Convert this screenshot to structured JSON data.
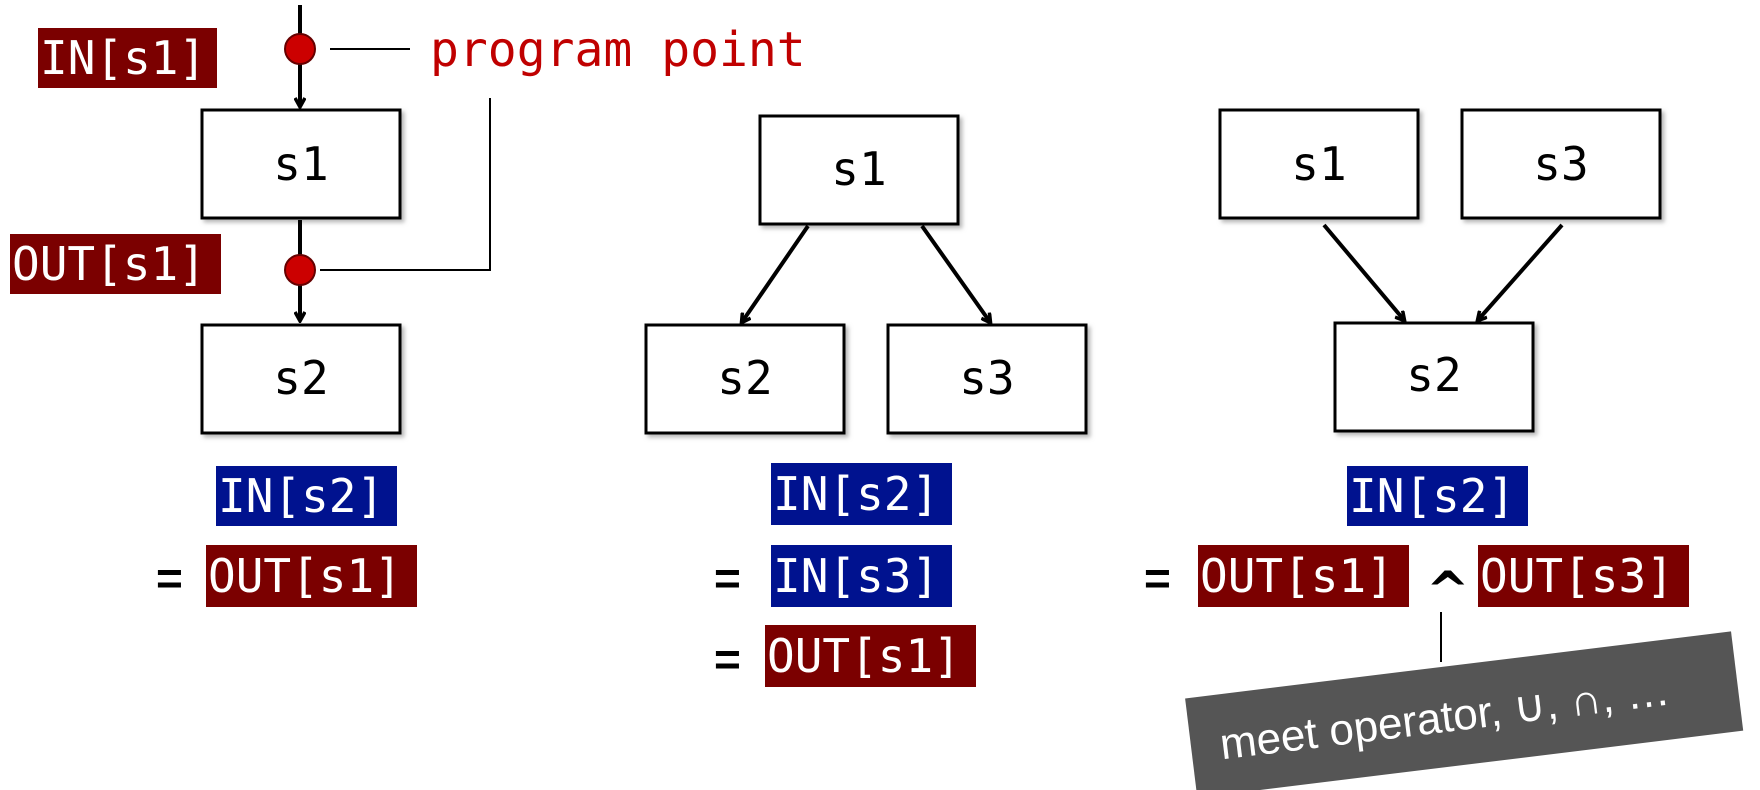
{
  "program_point_label": "program point",
  "diagrams": [
    {
      "nodes": [
        "s1",
        "s2"
      ],
      "in_s1": "IN[s1]",
      "out_s1": "OUT[s1]",
      "eq_lhs": "IN[s2]",
      "eq_sign": "=",
      "eq_rhs": "OUT[s1]"
    },
    {
      "nodes": [
        "s1",
        "s2",
        "s3"
      ],
      "eq_lhs": "IN[s2]",
      "eq_sign1": "=",
      "eq_rhs1": "IN[s3]",
      "eq_sign2": "=",
      "eq_rhs2": "OUT[s1]"
    },
    {
      "nodes": [
        "s1",
        "s3",
        "s2"
      ],
      "eq_lhs": "IN[s2]",
      "eq_sign": "=",
      "eq_rhs_a": "OUT[s1]",
      "meet_symbol": "^",
      "eq_rhs_b": "OUT[s3]",
      "meet_note": "meet operator, ∪, ∩, …"
    }
  ],
  "colors": {
    "in_label": "#00128f",
    "out_label": "#7b0000",
    "program_point": "#c00000",
    "note_bg": "#555555"
  }
}
